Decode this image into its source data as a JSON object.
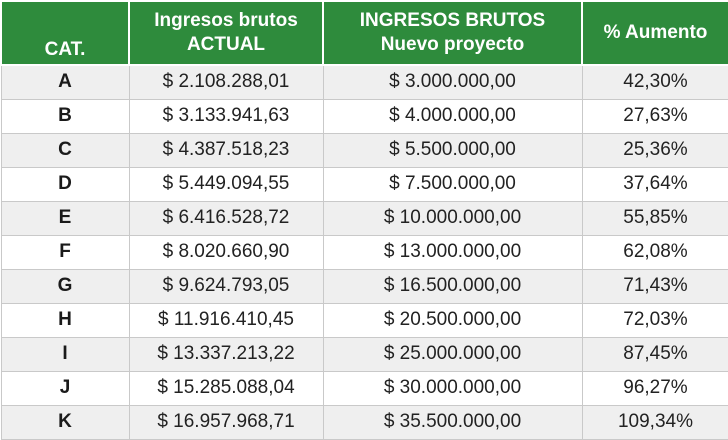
{
  "table": {
    "headers": {
      "cat": "CAT.",
      "actual_line1": "Ingresos brutos",
      "actual_line2": "ACTUAL",
      "nuevo_line1": "INGRESOS BRUTOS",
      "nuevo_line2": "Nuevo proyecto",
      "aumento": "% Aumento"
    },
    "rows": [
      {
        "cat": "A",
        "actual": "$ 2.108.288,01",
        "nuevo": "$ 3.000.000,00",
        "aumento": "42,30%"
      },
      {
        "cat": "B",
        "actual": "$ 3.133.941,63",
        "nuevo": "$ 4.000.000,00",
        "aumento": "27,63%"
      },
      {
        "cat": "C",
        "actual": "$ 4.387.518,23",
        "nuevo": "$ 5.500.000,00",
        "aumento": "25,36%"
      },
      {
        "cat": "D",
        "actual": "$ 5.449.094,55",
        "nuevo": "$ 7.500.000,00",
        "aumento": "37,64%"
      },
      {
        "cat": "E",
        "actual": "$ 6.416.528,72",
        "nuevo": "$ 10.000.000,00",
        "aumento": "55,85%"
      },
      {
        "cat": "F",
        "actual": "$ 8.020.660,90",
        "nuevo": "$ 13.000.000,00",
        "aumento": "62,08%"
      },
      {
        "cat": "G",
        "actual": "$ 9.624.793,05",
        "nuevo": "$ 16.500.000,00",
        "aumento": "71,43%"
      },
      {
        "cat": "H",
        "actual": "$ 11.916.410,45",
        "nuevo": "$ 20.500.000,00",
        "aumento": "72,03%"
      },
      {
        "cat": "I",
        "actual": "$ 13.337.213,22",
        "nuevo": "$ 25.000.000,00",
        "aumento": "87,45%"
      },
      {
        "cat": "J",
        "actual": "$ 15.285.088,04",
        "nuevo": "$ 30.000.000,00",
        "aumento": "96,27%"
      },
      {
        "cat": "K",
        "actual": "$ 16.957.968,71",
        "nuevo": "$ 35.500.000,00",
        "aumento": "109,34%"
      }
    ]
  },
  "colors": {
    "header_bg": "#2e8b3c",
    "header_text": "#ffffff",
    "row_stripe": "#efefef",
    "row_plain": "#ffffff",
    "grid_line": "#c9c9c9"
  }
}
